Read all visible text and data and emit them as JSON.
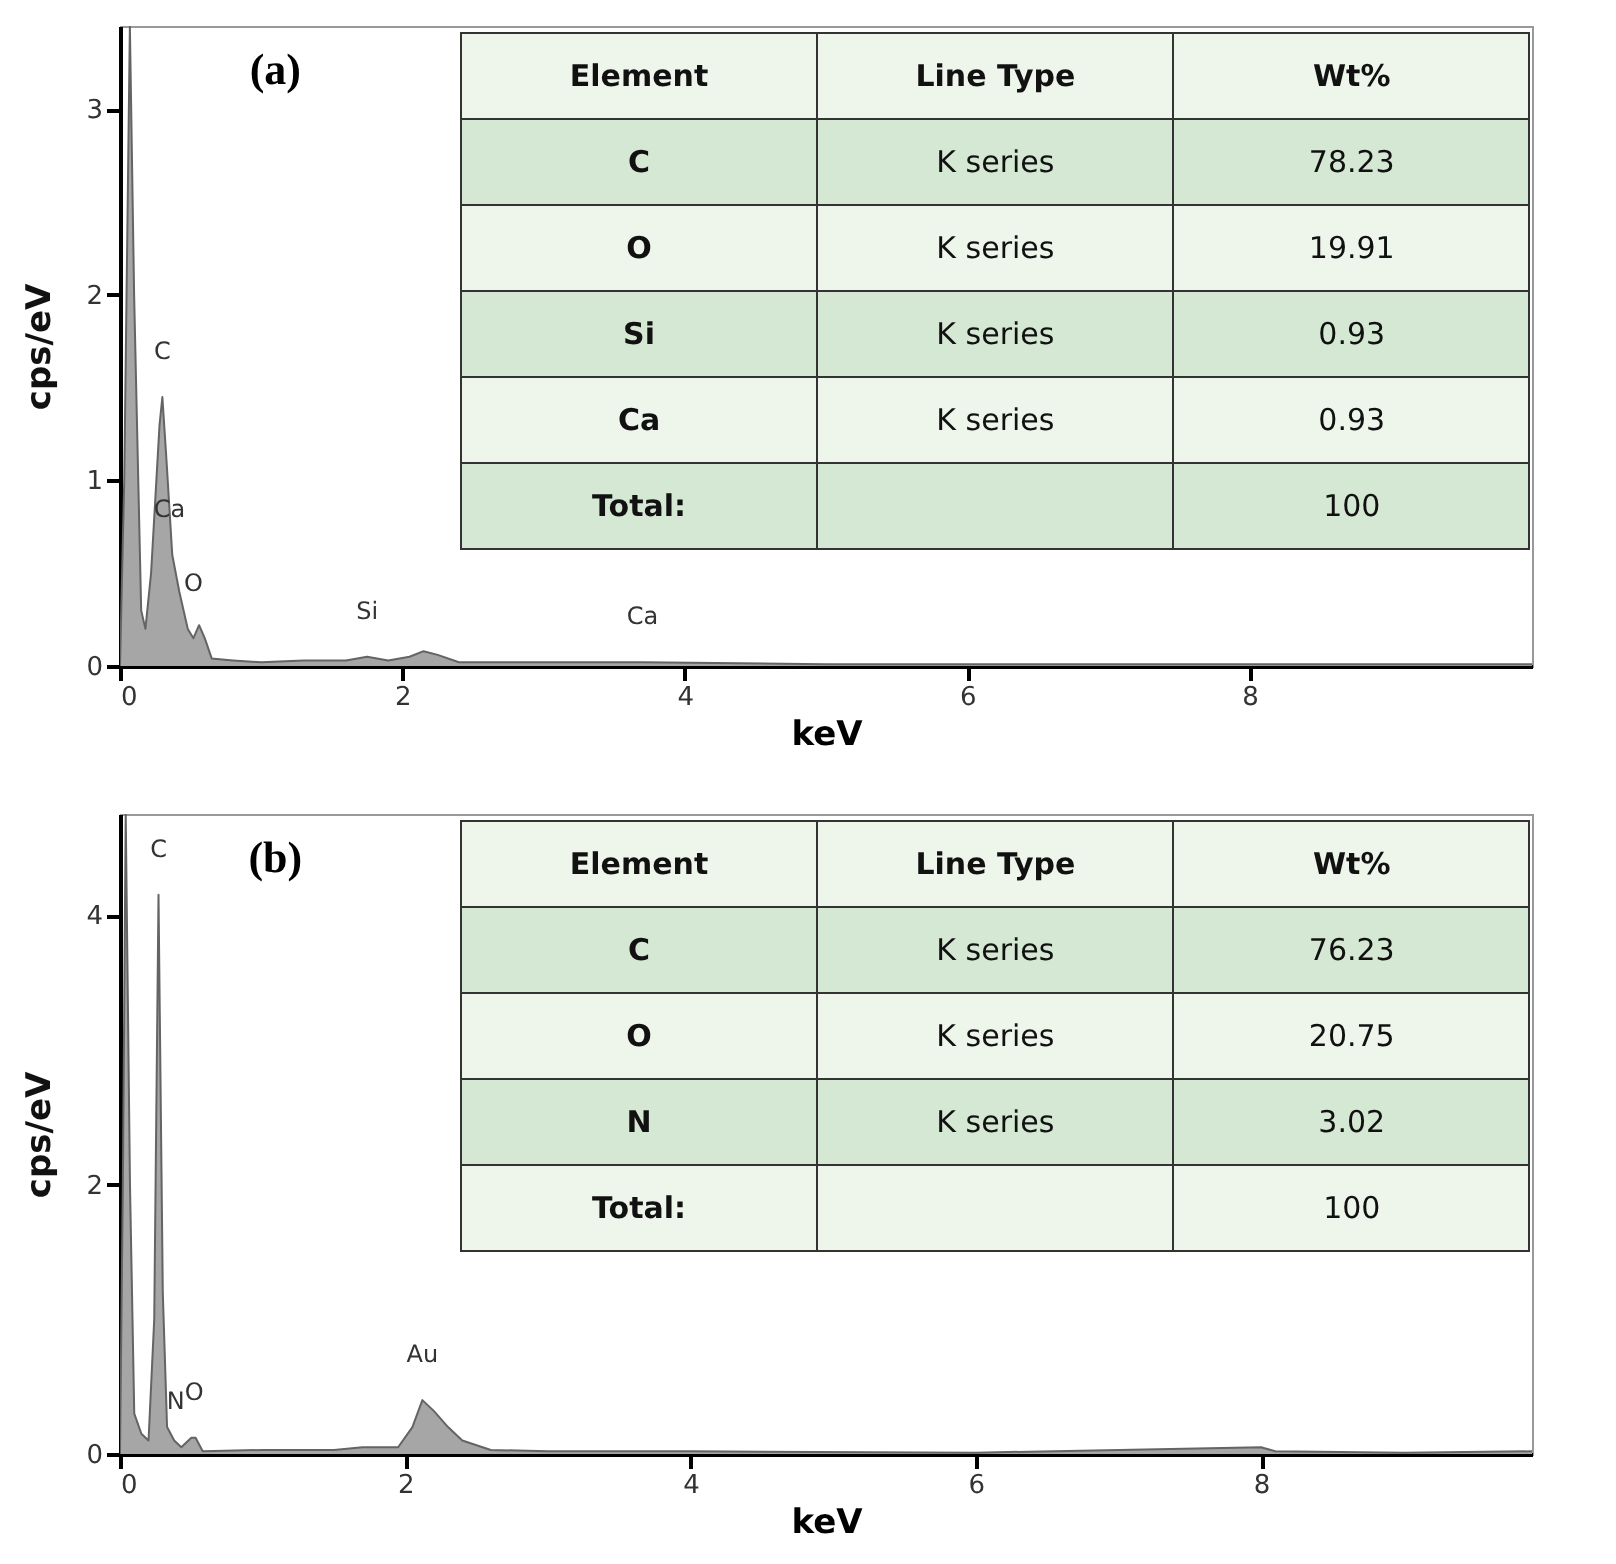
{
  "chart_data": [
    {
      "type": "area",
      "xlabel": "keV",
      "ylabel": "cps/eV",
      "xlim": [
        0,
        10
      ],
      "ylim": [
        0,
        3.45
      ],
      "xticks": [
        0,
        2,
        4,
        6,
        8
      ],
      "yticks": [
        0,
        1,
        2,
        3
      ],
      "grid": false,
      "x": [
        0,
        0.03,
        0.07,
        0.1,
        0.15,
        0.18,
        0.22,
        0.28,
        0.3,
        0.33,
        0.37,
        0.42,
        0.48,
        0.52,
        0.56,
        0.6,
        0.65,
        0.8,
        1.0,
        1.3,
        1.6,
        1.75,
        1.9,
        2.05,
        2.15,
        2.25,
        2.4,
        3.0,
        3.7,
        5,
        7,
        10
      ],
      "series": [
        {
          "color": "#a6a6a6",
          "values": [
            0,
            1.0,
            3.45,
            2.0,
            0.3,
            0.2,
            0.5,
            1.3,
            1.45,
            1.1,
            0.6,
            0.4,
            0.2,
            0.15,
            0.22,
            0.15,
            0.04,
            0.03,
            0.02,
            0.03,
            0.03,
            0.05,
            0.03,
            0.05,
            0.08,
            0.06,
            0.02,
            0.02,
            0.02,
            0.01,
            0.01,
            0.01
          ]
        }
      ],
      "annotations": [
        "(a)",
        {
          "text": "C",
          "x": 0.3,
          "y": 1.45
        },
        {
          "text": "Ca",
          "x": 0.35,
          "y": 0.6
        },
        {
          "text": "O",
          "x": 0.52,
          "y": 0.2
        },
        {
          "text": "Si",
          "x": 1.75,
          "y": 0.05
        },
        {
          "text": "Ca",
          "x": 3.7,
          "y": 0.02
        },
        "Element",
        "Line Type",
        "Wt%",
        "C",
        "K series",
        "78.23",
        "O",
        "K series",
        "19.91",
        "Si",
        "K series",
        "0.93",
        "Ca",
        "K series",
        "0.93",
        "Total:",
        "100"
      ]
    },
    {
      "type": "area",
      "xlabel": "keV",
      "ylabel": "cps/eV",
      "xlim": [
        0,
        9.9
      ],
      "ylim": [
        0,
        4.75
      ],
      "xticks": [
        0,
        2,
        4,
        6,
        8
      ],
      "yticks": [
        0,
        2,
        4
      ],
      "grid": false,
      "x": [
        0,
        0.02,
        0.04,
        0.07,
        0.1,
        0.15,
        0.2,
        0.24,
        0.27,
        0.3,
        0.33,
        0.38,
        0.43,
        0.5,
        0.53,
        0.58,
        1.0,
        1.5,
        1.7,
        1.95,
        2.05,
        2.12,
        2.2,
        2.3,
        2.4,
        2.6,
        3.0,
        4,
        6,
        8.0,
        8.1,
        9.0,
        9.9
      ],
      "series": [
        {
          "color": "#a6a6a6",
          "values": [
            0,
            2,
            4.75,
            2.0,
            0.3,
            0.15,
            0.1,
            1.0,
            4.15,
            1.2,
            0.2,
            0.1,
            0.05,
            0.12,
            0.12,
            0.02,
            0.03,
            0.03,
            0.05,
            0.05,
            0.2,
            0.4,
            0.32,
            0.2,
            0.1,
            0.03,
            0.02,
            0.02,
            0.01,
            0.05,
            0.02,
            0.01,
            0.02
          ]
        }
      ],
      "annotations": [
        "(b)",
        {
          "text": "C",
          "x": 0.27,
          "y": 4.15
        },
        {
          "text": "O",
          "x": 0.52,
          "y": 0.12
        },
        {
          "text": "N",
          "x": 0.39,
          "y": 0.05
        },
        {
          "text": "Au",
          "x": 2.12,
          "y": 0.4
        },
        "Element",
        "Line Type",
        "Wt%",
        "C",
        "K series",
        "76.23",
        "O",
        "K series",
        "20.75",
        "N",
        "K series",
        "3.02",
        "Total:",
        "100"
      ]
    }
  ]
}
